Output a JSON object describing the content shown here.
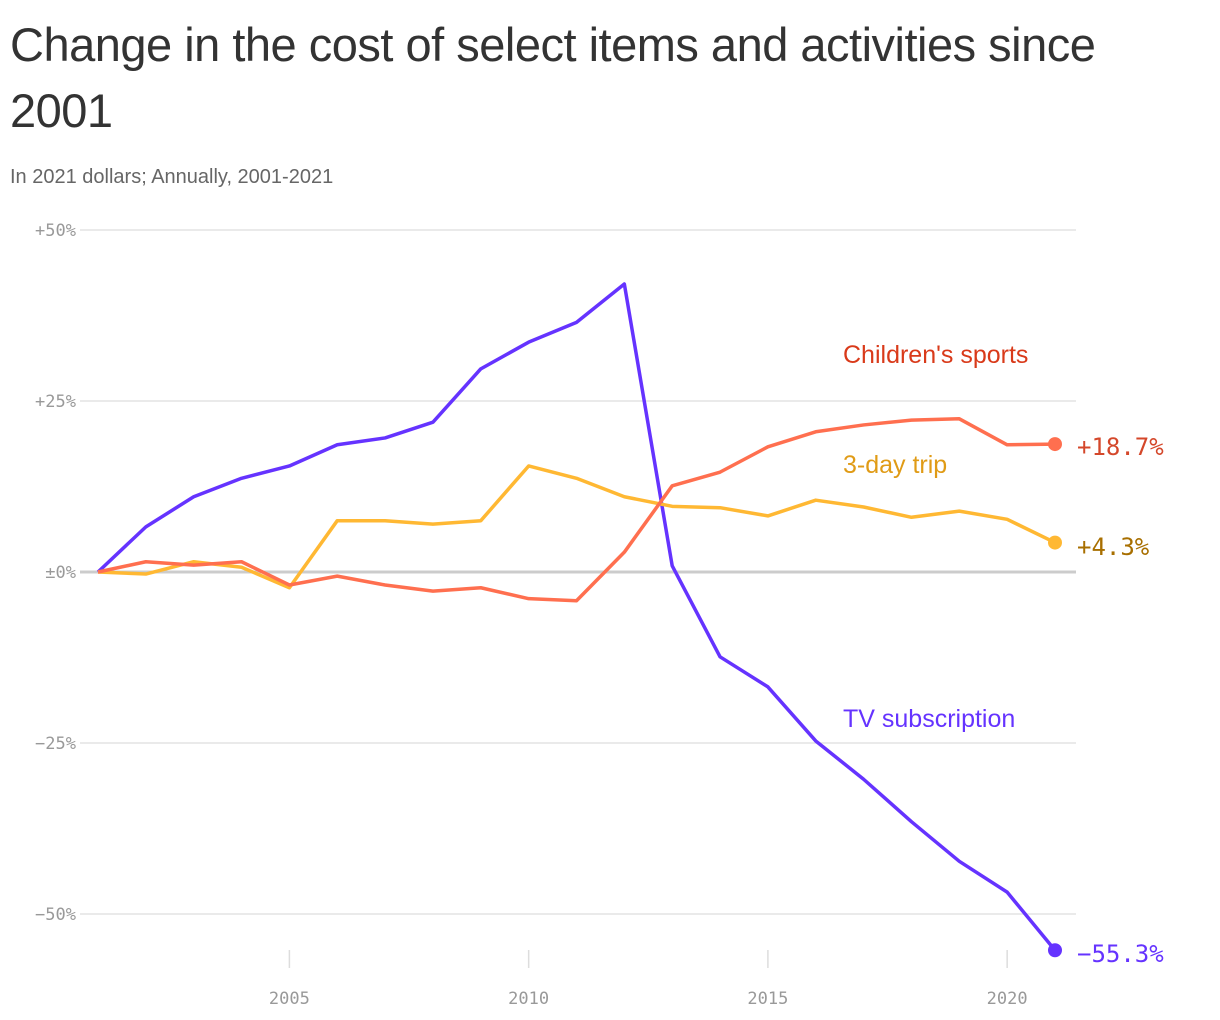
{
  "chart_data": {
    "type": "line",
    "title": "Change in the cost of select items and activities since 2001",
    "subtitle": "In 2021 dollars; Annually, 2001-2021",
    "xlabel": "",
    "ylabel": "",
    "ylim": [
      -55.3,
      50
    ],
    "xlim": [
      2001,
      2021
    ],
    "grid": true,
    "y_ticks": [
      {
        "value": 50,
        "label": "+50%"
      },
      {
        "value": 25,
        "label": "+25%"
      },
      {
        "value": 0,
        "label": "±0%"
      },
      {
        "value": -25,
        "label": "−25%"
      },
      {
        "value": -50,
        "label": "−50%"
      }
    ],
    "x_ticks": [
      {
        "value": 2005,
        "label": "2005"
      },
      {
        "value": 2010,
        "label": "2010"
      },
      {
        "value": 2015,
        "label": "2015"
      },
      {
        "value": 2020,
        "label": "2020"
      }
    ],
    "x": [
      2001,
      2002,
      2003,
      2004,
      2005,
      2006,
      2007,
      2008,
      2009,
      2010,
      2011,
      2012,
      2013,
      2014,
      2015,
      2016,
      2017,
      2018,
      2019,
      2020,
      2021
    ],
    "series": [
      {
        "name": "TV subscription",
        "color": "#6533ff",
        "label_color": "#6533ff",
        "end_label": "−55.3%",
        "values": [
          0,
          6.6,
          11,
          13.7,
          15.5,
          18.6,
          19.6,
          21.9,
          29.7,
          33.6,
          36.5,
          42.1,
          0.9,
          -12.4,
          -16.8,
          -24.7,
          -30.3,
          -36.5,
          -42.3,
          -46.8,
          -55.3
        ]
      },
      {
        "name": "3-day trip",
        "color": "#ffb833",
        "label_color": "#e09b16",
        "end_label": "+4.3%",
        "end_label_color": "#a86f00",
        "values": [
          0,
          -0.3,
          1.5,
          0.7,
          -2.3,
          7.5,
          7.5,
          7.0,
          7.5,
          15.5,
          13.7,
          11.0,
          9.6,
          9.4,
          8.2,
          10.5,
          9.5,
          8.0,
          8.9,
          7.7,
          4.3
        ]
      },
      {
        "name": "Children's sports",
        "color": "#ff6f4f",
        "label_color": "#d93a1a",
        "end_label": "+18.7%",
        "end_label_color": "#d4472a",
        "values": [
          0,
          1.5,
          1.0,
          1.5,
          -1.9,
          -0.6,
          -1.9,
          -2.8,
          -2.3,
          -3.9,
          -4.2,
          2.9,
          12.6,
          14.6,
          18.3,
          20.5,
          21.5,
          22.2,
          22.4,
          18.6,
          18.7
        ]
      }
    ]
  }
}
